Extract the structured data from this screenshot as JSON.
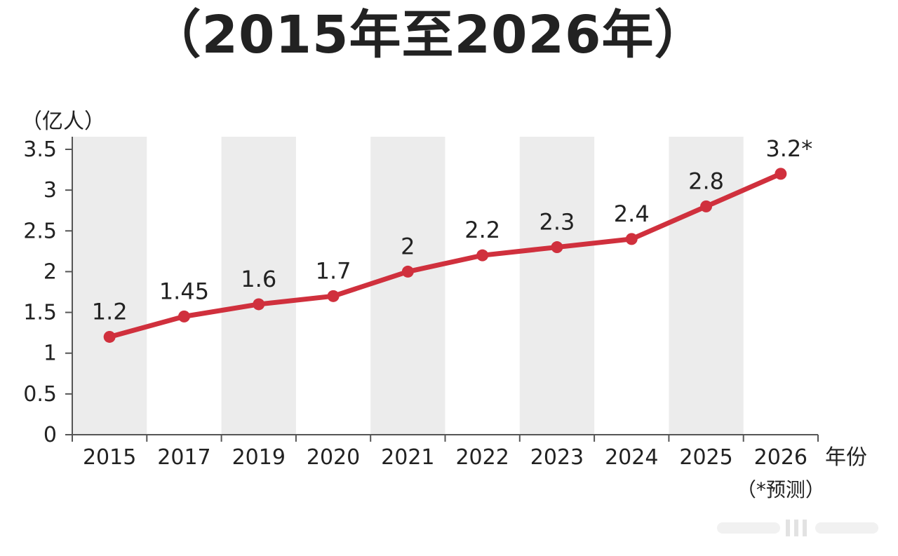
{
  "title": "（2015年至2026年）",
  "chart_data": {
    "type": "line",
    "ylabel": "（亿人）",
    "xlabel": "年份",
    "categories": [
      "2015",
      "2017",
      "2019",
      "2020",
      "2021",
      "2022",
      "2023",
      "2024",
      "2025",
      "2026"
    ],
    "ylim": [
      0,
      3.5
    ],
    "yticks": [
      0,
      0.5,
      1,
      1.5,
      2,
      2.5,
      3,
      3.5
    ],
    "ytick_labels": [
      "0",
      "0.5",
      "1",
      "1.5",
      "2",
      "2.5",
      "3",
      "3.5"
    ],
    "series": [
      {
        "values": [
          1.2,
          1.45,
          1.6,
          1.7,
          2,
          2.2,
          2.3,
          2.4,
          2.8,
          3.2
        ],
        "labels": [
          "1.2",
          "1.45",
          "1.6",
          "1.7",
          "2",
          "2.2",
          "2.3",
          "2.4",
          "2.8",
          "3.2*"
        ],
        "color": "#d0303d"
      }
    ],
    "forecast_note": "（*预测）",
    "band_color": "#ececec",
    "grid": false
  }
}
